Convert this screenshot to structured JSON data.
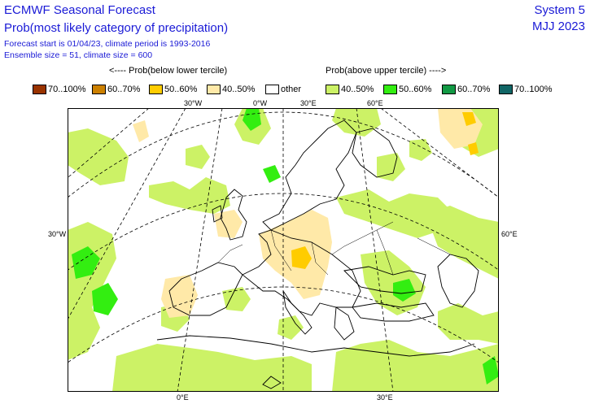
{
  "header": {
    "title": "ECMWF Seasonal Forecast",
    "subtitle": "Prob(most likely category of precipitation)",
    "forecast_line": "Forecast start is 01/04/23, climate period is 1993-2016",
    "ensemble_line": "Ensemble size = 51, climate size = 600",
    "system": "System 5",
    "period": "MJJ 2023"
  },
  "legend": {
    "below_header": "<---- Prob(below lower tercile)",
    "above_header": "Prob(above upper tercile) ---->",
    "items": [
      {
        "label": "70..100%",
        "color": "#993300"
      },
      {
        "label": "60..70%",
        "color": "#cc8000"
      },
      {
        "label": "50..60%",
        "color": "#ffcc00"
      },
      {
        "label": "40..50%",
        "color": "#ffe9a8"
      },
      {
        "label": "other",
        "color": "#ffffff"
      },
      {
        "label": "40..50%",
        "color": "#ccf266"
      },
      {
        "label": "50..60%",
        "color": "#33ee11"
      },
      {
        "label": "60..70%",
        "color": "#119944"
      },
      {
        "label": "70..100%",
        "color": "#116666"
      }
    ]
  },
  "grid_labels": {
    "lon_30w_top": "30°W",
    "lon_0_top": "0°W",
    "lon_30e_top": "30°E",
    "lon_60e_top": "60°E",
    "lat_30_left": "30°W",
    "lat_60_right": "60°E",
    "lon_0_bottom": "0°E",
    "lon_30e_bottom": "30°E"
  },
  "map": {
    "region": "Europe",
    "land_color": "#ffffff",
    "boundary_color": "#000000"
  }
}
